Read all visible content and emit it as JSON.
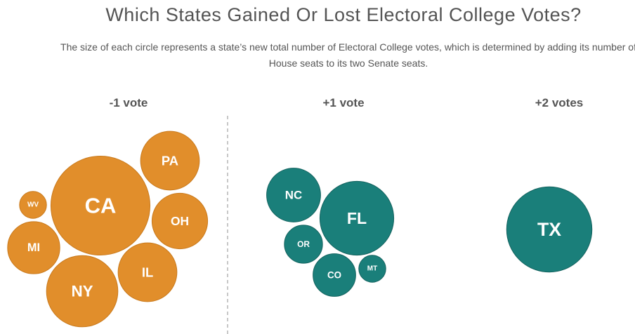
{
  "title": "Which States Gained Or Lost Electoral College Votes?",
  "subtitle": "The size of each circle represents a state’s new total number of Electoral College votes, which is determined by adding its number of House seats to its two Senate seats.",
  "colors": {
    "lost": "#e18e2b",
    "gained": "#1a7f7a",
    "divider": "#b5b5b5"
  },
  "chart_data": {
    "type": "bubble",
    "title": "Which States Gained Or Lost Electoral College Votes?",
    "size_measure": "new total Electoral College votes",
    "groups": [
      {
        "label": "-1 vote",
        "change": -1,
        "color": "#e18e2b",
        "states": [
          {
            "state": "CA",
            "electoral_votes": 54
          },
          {
            "state": "NY",
            "electoral_votes": 28
          },
          {
            "state": "PA",
            "electoral_votes": 19
          },
          {
            "state": "IL",
            "electoral_votes": 19
          },
          {
            "state": "OH",
            "electoral_votes": 17
          },
          {
            "state": "MI",
            "electoral_votes": 15
          },
          {
            "state": "WV",
            "electoral_votes": 4
          }
        ]
      },
      {
        "label": "+1 vote",
        "change": 1,
        "color": "#1a7f7a",
        "states": [
          {
            "state": "FL",
            "electoral_votes": 30
          },
          {
            "state": "NC",
            "electoral_votes": 16
          },
          {
            "state": "CO",
            "electoral_votes": 10
          },
          {
            "state": "OR",
            "electoral_votes": 8
          },
          {
            "state": "MT",
            "electoral_votes": 4
          }
        ]
      },
      {
        "label": "+2 votes",
        "change": 2,
        "color": "#1a7f7a",
        "states": [
          {
            "state": "TX",
            "electoral_votes": 40
          }
        ]
      }
    ]
  }
}
